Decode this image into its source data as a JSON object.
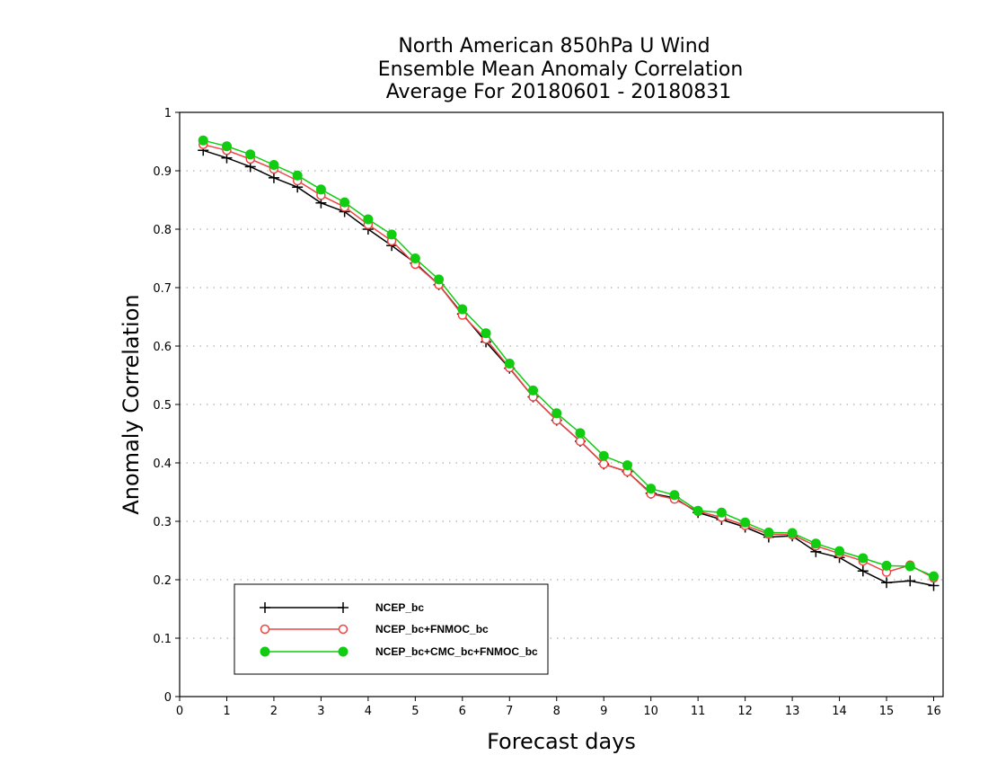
{
  "chart_data": {
    "type": "line",
    "title": [
      "North American 850hPa U Wind",
      "Ensemble Mean Anomaly Correlation",
      "Average For 20180601 - 20180831"
    ],
    "xlabel": "Forecast days",
    "ylabel": "Anomaly Correlation",
    "xlim": [
      0,
      16.2
    ],
    "ylim": [
      0,
      1
    ],
    "xticks": [
      0,
      1,
      2,
      3,
      4,
      5,
      6,
      7,
      8,
      9,
      10,
      11,
      12,
      13,
      14,
      15,
      16
    ],
    "yticks": [
      0,
      0.1,
      0.2,
      0.3,
      0.4,
      0.5,
      0.6,
      0.7,
      0.8,
      0.9,
      1
    ],
    "ytick_labels": [
      "0",
      "0.1",
      "0.2",
      "0.3",
      "0.4",
      "0.5",
      "0.6",
      "0.7",
      "0.8",
      "0.9",
      "1"
    ],
    "grid": "horizontal dotted",
    "legend_position": "bottom-left",
    "x": [
      0.5,
      1,
      1.5,
      2,
      2.5,
      3,
      3.5,
      4,
      4.5,
      5,
      5.5,
      6,
      6.5,
      7,
      7.5,
      8,
      8.5,
      9,
      9.5,
      10,
      10.5,
      11,
      11.5,
      12,
      12.5,
      13,
      13.5,
      14,
      14.5,
      15,
      15.5,
      16
    ],
    "series": [
      {
        "name": "NCEP_bc",
        "color": "#000000",
        "marker": "plus",
        "values": [
          0.935,
          0.922,
          0.907,
          0.888,
          0.872,
          0.845,
          0.83,
          0.8,
          0.772,
          0.742,
          0.705,
          0.655,
          0.607,
          0.562,
          0.513,
          0.473,
          0.437,
          0.398,
          0.385,
          0.348,
          0.34,
          0.315,
          0.303,
          0.29,
          0.273,
          0.275,
          0.248,
          0.238,
          0.215,
          0.195,
          0.198,
          0.19
        ]
      },
      {
        "name": "NCEP_bc+FNMOC_bc",
        "color": "#ee4444",
        "marker": "open-circle",
        "values": [
          0.945,
          0.935,
          0.92,
          0.903,
          0.883,
          0.858,
          0.838,
          0.808,
          0.78,
          0.74,
          0.705,
          0.653,
          0.612,
          0.563,
          0.513,
          0.473,
          0.437,
          0.398,
          0.385,
          0.347,
          0.338,
          0.317,
          0.307,
          0.293,
          0.278,
          0.277,
          0.258,
          0.245,
          0.232,
          0.213,
          0.225,
          0.203
        ]
      },
      {
        "name": "NCEP_bc+CMC_bc+FNMOC_bc",
        "color": "#11cc11",
        "marker": "filled-circle",
        "values": [
          0.952,
          0.942,
          0.928,
          0.91,
          0.892,
          0.868,
          0.846,
          0.817,
          0.791,
          0.75,
          0.714,
          0.663,
          0.622,
          0.57,
          0.524,
          0.485,
          0.451,
          0.412,
          0.396,
          0.356,
          0.345,
          0.318,
          0.315,
          0.298,
          0.281,
          0.28,
          0.262,
          0.249,
          0.237,
          0.224,
          0.223,
          0.206
        ]
      }
    ]
  }
}
